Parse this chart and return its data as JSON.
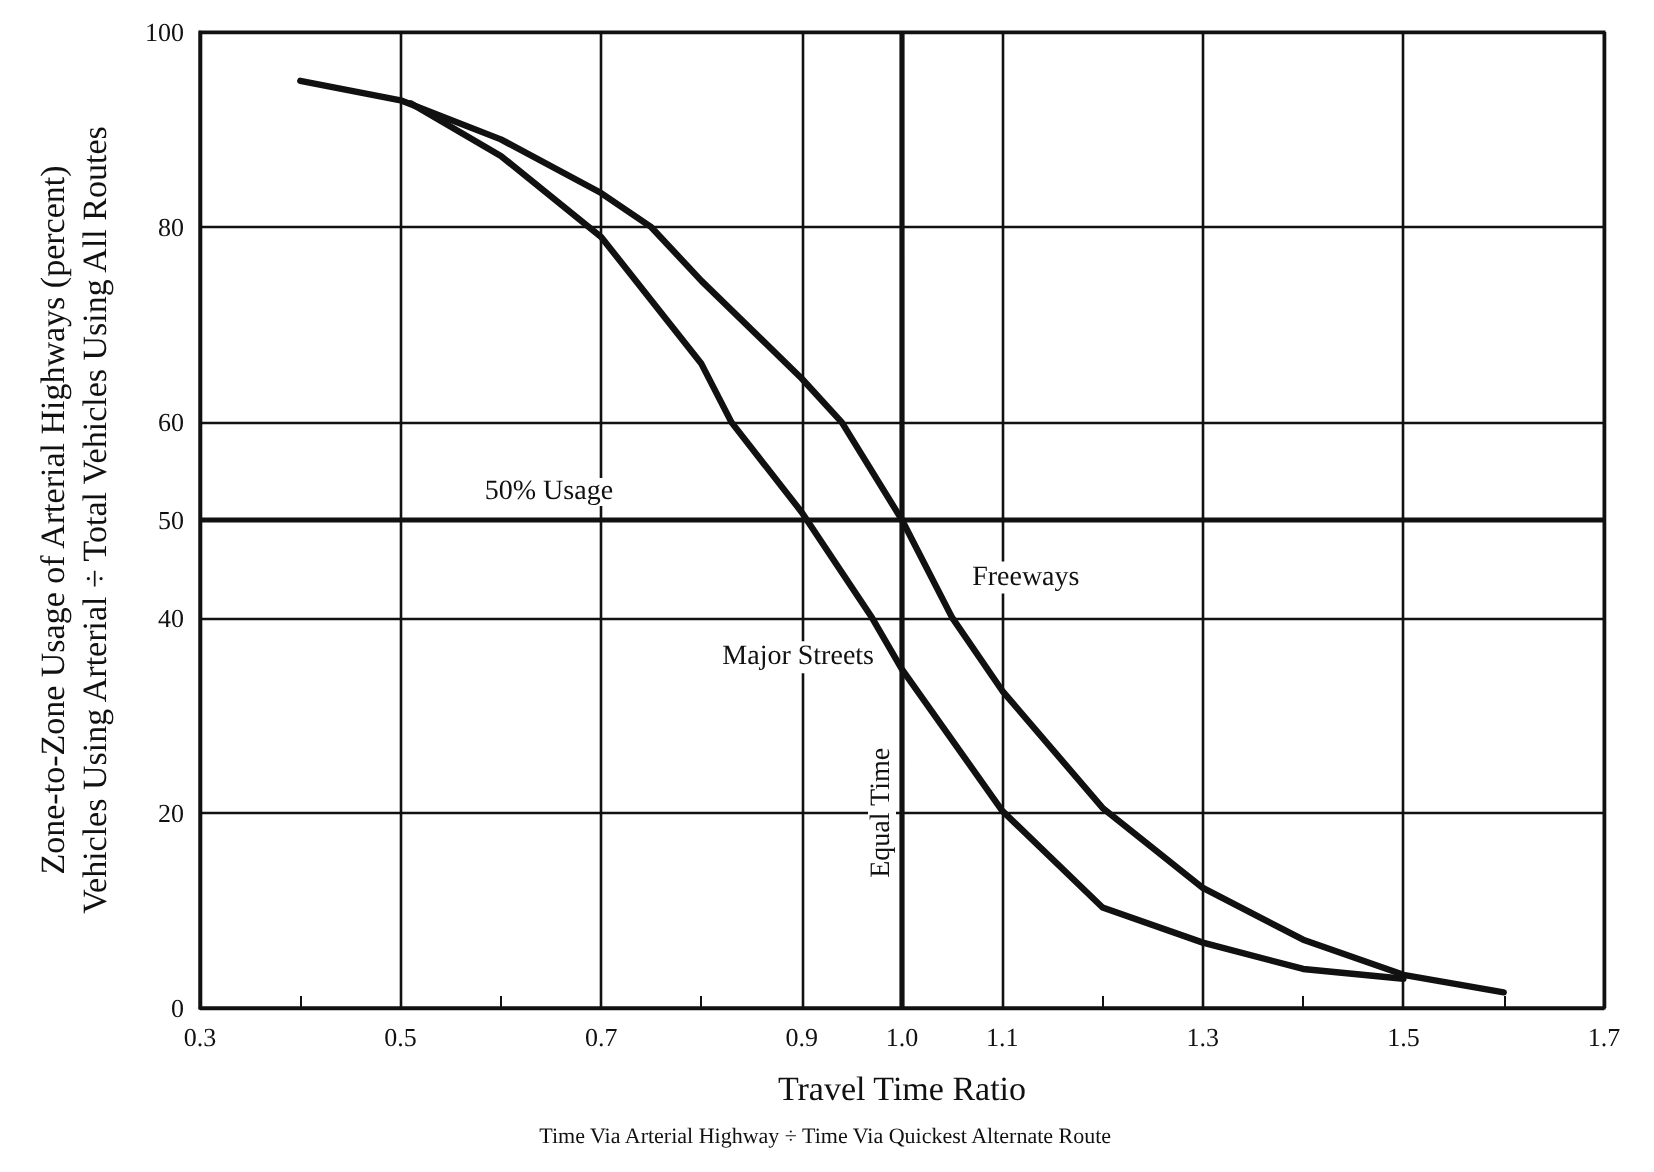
{
  "chart_data": {
    "type": "line",
    "xlabel": "Travel Time Ratio",
    "ylabel": "Zone-to-Zone Usage of Arterial Highways (percent)\nVehicles Using Arterial ÷ Total Vehicles Using All Routes",
    "annotations": [
      "Time Via Arterial Highway ÷ Time Via Quickest Alternate Route"
    ],
    "series": [
      {
        "name": "Freeways",
        "color": "#111111",
        "x": [
          0.4,
          0.5,
          0.6,
          0.7,
          0.75,
          0.8,
          0.9,
          0.94,
          1.0,
          1.05,
          1.1,
          1.2,
          1.3,
          1.4,
          1.5,
          1.6
        ],
        "values": [
          95,
          93,
          89,
          83.5,
          80,
          74.5,
          64.5,
          60,
          50,
          40,
          32.5,
          20.5,
          12.3,
          7,
          3.4,
          1.6
        ]
      },
      {
        "name": "Major Streets",
        "color": "#111111",
        "x": [
          0.51,
          0.6,
          0.7,
          0.8,
          0.83,
          0.9,
          0.97,
          1.0,
          1.1,
          1.2,
          1.3,
          1.4,
          1.5
        ],
        "values": [
          92.7,
          87.3,
          79,
          66,
          60,
          50.8,
          40,
          34.7,
          20.2,
          10.3,
          6.7,
          4,
          3
        ]
      }
    ],
    "xlim": [
      0.3,
      1.7
    ],
    "xticks": [
      {
        "value": 0.3,
        "label": "0.3"
      },
      {
        "value": 0.4,
        "label": null
      },
      0.5,
      {
        "value": 0.6,
        "label": null
      },
      0.7,
      {
        "value": 0.8,
        "label": null
      },
      0.9,
      {
        "value": 1.0,
        "label": "1.0"
      },
      1.1,
      {
        "value": 1.2,
        "label": null
      },
      1.3,
      {
        "value": 1.4,
        "label": null
      },
      1.5,
      {
        "value": 1.6,
        "label": null
      },
      1.7
    ],
    "ylim": [
      0,
      100
    ],
    "yticks": [
      0,
      20,
      40,
      50,
      60,
      80,
      100
    ],
    "ref_lines": [
      {
        "axis": "y",
        "value": 50,
        "label": "50% Usage"
      },
      {
        "axis": "x",
        "value": 1.0,
        "label": "Equal Time"
      }
    ],
    "grid": true,
    "legend": false,
    "marker": "none",
    "line_style": "solid"
  }
}
